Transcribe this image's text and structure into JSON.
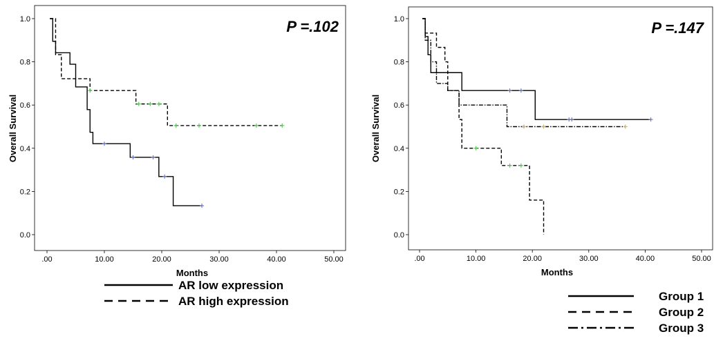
{
  "chart_data": [
    {
      "type": "line",
      "subtype": "kaplan-meier",
      "annotation": "P =.102",
      "xlabel": "Months",
      "ylabel": "Overall Survival",
      "xlim": [
        0,
        50
      ],
      "ylim": [
        0,
        1
      ],
      "xticks": [
        0,
        10,
        20,
        30,
        40,
        50
      ],
      "xtick_labels": [
        ".00",
        "10.00",
        "20.00",
        "30.00",
        "40.00",
        "50.00"
      ],
      "yticks": [
        0,
        0.2,
        0.4,
        0.6,
        0.8,
        1.0
      ],
      "ytick_labels": [
        "0.0",
        "0.2",
        "0.4",
        "0.6",
        "0.8",
        "1.0"
      ],
      "grid": false,
      "legend_position": "bottom",
      "series": [
        {
          "name": "AR low expression",
          "dash": "solid",
          "color": "#000000",
          "steps": [
            [
              0.5,
              1.0
            ],
            [
              1.0,
              0.895
            ],
            [
              1.5,
              0.842
            ],
            [
              4,
              0.789
            ],
            [
              5,
              0.684
            ],
            [
              7,
              0.579
            ],
            [
              7.5,
              0.474
            ],
            [
              8,
              0.421
            ],
            [
              14.5,
              0.358
            ],
            [
              19.5,
              0.269
            ],
            [
              22,
              0.134
            ],
            [
              27,
              0.134
            ]
          ],
          "censored": [
            [
              10,
              0.421
            ],
            [
              15,
              0.358
            ],
            [
              18.5,
              0.358
            ],
            [
              20.5,
              0.269
            ],
            [
              27,
              0.134
            ]
          ],
          "censor_color": "#6b78c9"
        },
        {
          "name": "AR high expression",
          "dash": "dashed",
          "color": "#000000",
          "steps": [
            [
              0.5,
              1.0
            ],
            [
              1.5,
              0.833
            ],
            [
              2.5,
              0.722
            ],
            [
              7.5,
              0.667
            ],
            [
              15.5,
              0.605
            ],
            [
              21,
              0.505
            ],
            [
              41,
              0.505
            ]
          ],
          "censored": [
            [
              7.5,
              0.667
            ],
            [
              16,
              0.605
            ],
            [
              18,
              0.605
            ],
            [
              19.5,
              0.605
            ],
            [
              22.5,
              0.505
            ],
            [
              26.5,
              0.505
            ],
            [
              36.5,
              0.505
            ],
            [
              41,
              0.505
            ]
          ],
          "censor_color": "#5bc45b"
        }
      ]
    },
    {
      "type": "line",
      "subtype": "kaplan-meier",
      "annotation": "P =.147",
      "xlabel": "Months",
      "ylabel": "Overall Survival",
      "xlim": [
        0,
        50
      ],
      "ylim": [
        0,
        1
      ],
      "xticks": [
        0,
        10,
        20,
        30,
        40,
        50
      ],
      "xtick_labels": [
        ".00",
        "10.00",
        "20.00",
        "30.00",
        "40.00",
        "50.00"
      ],
      "yticks": [
        0,
        0.2,
        0.4,
        0.6,
        0.8,
        1.0
      ],
      "ytick_labels": [
        "0.0",
        "0.2",
        "0.4",
        "0.6",
        "0.8",
        "1.0"
      ],
      "grid": false,
      "legend_position": "bottom-right",
      "series": [
        {
          "name": "Group 1",
          "dash": "solid",
          "color": "#000000",
          "steps": [
            [
              0.5,
              1.0
            ],
            [
              1,
              0.917
            ],
            [
              1.5,
              0.833
            ],
            [
              2,
              0.75
            ],
            [
              7.5,
              0.667
            ],
            [
              20.5,
              0.533
            ],
            [
              41,
              0.533
            ]
          ],
          "censored": [
            [
              16,
              0.667
            ],
            [
              18,
              0.667
            ],
            [
              26.5,
              0.533
            ],
            [
              27,
              0.533
            ],
            [
              41,
              0.533
            ]
          ],
          "censor_color": "#6b78c9"
        },
        {
          "name": "Group 2",
          "dash": "dashed",
          "color": "#000000",
          "steps": [
            [
              0.5,
              1.0
            ],
            [
              1,
              0.933
            ],
            [
              3,
              0.867
            ],
            [
              4.5,
              0.8
            ],
            [
              5,
              0.667
            ],
            [
              7,
              0.533
            ],
            [
              7.5,
              0.4
            ],
            [
              14.5,
              0.32
            ],
            [
              19.5,
              0.16
            ],
            [
              22,
              0.0
            ]
          ],
          "censored": [
            [
              10,
              0.4
            ],
            [
              16,
              0.32
            ],
            [
              18,
              0.32
            ]
          ],
          "censor_color": "#5bc45b"
        },
        {
          "name": "Group 3",
          "dash": "dashdot",
          "color": "#000000",
          "steps": [
            [
              0.5,
              1.0
            ],
            [
              1,
              0.9
            ],
            [
              2,
              0.8
            ],
            [
              3,
              0.7
            ],
            [
              5,
              0.667
            ],
            [
              7,
              0.6
            ],
            [
              15.5,
              0.5
            ],
            [
              36.5,
              0.5
            ]
          ],
          "censored": [
            [
              18.5,
              0.5
            ],
            [
              22,
              0.5
            ],
            [
              36.5,
              0.5
            ]
          ],
          "censor_color": "#c8b870"
        }
      ]
    }
  ]
}
